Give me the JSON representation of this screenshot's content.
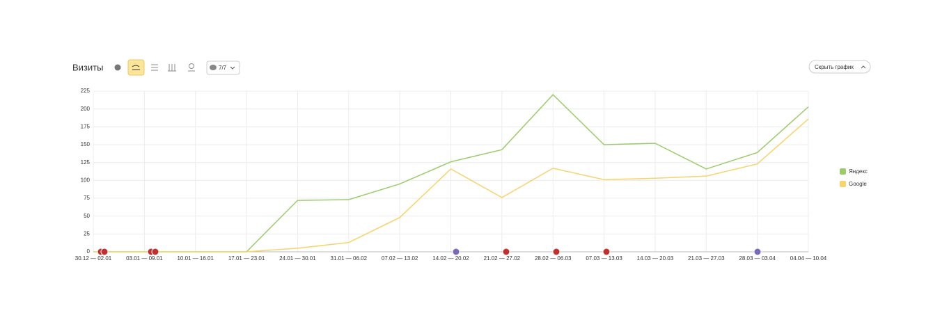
{
  "toolbar": {
    "title": "Визиты",
    "notes_filter": "7/7",
    "hide_button": "Скрыть график"
  },
  "chart_data": {
    "type": "line",
    "categories": [
      "30.12 — 02.01",
      "03.01 — 09.01",
      "10.01 — 16.01",
      "17.01 — 23.01",
      "24.01 — 30.01",
      "31.01 — 06.02",
      "07.02 — 13.02",
      "14.02 — 20.02",
      "21.02 — 27.02",
      "28.02 — 06.03",
      "07.03 — 13.03",
      "14.03 — 20.03",
      "21.03 — 27.03",
      "28.03 — 03.04",
      "04.04 — 10.04"
    ],
    "series": [
      {
        "name": "Яндекс",
        "color": "#9ccc6a",
        "values": [
          0,
          0,
          0,
          0,
          72,
          73,
          95,
          126,
          143,
          220,
          150,
          152,
          116,
          139,
          203
        ]
      },
      {
        "name": "Google",
        "color": "#f7d36b",
        "values": [
          0,
          0,
          0,
          0,
          5,
          13,
          48,
          116,
          76,
          117,
          101,
          103,
          106,
          123,
          186
        ]
      }
    ],
    "ylim": [
      0,
      225
    ],
    "yticks": [
      0,
      25,
      50,
      75,
      100,
      125,
      150,
      175,
      200,
      225
    ],
    "grid": true,
    "legend": "right"
  }
}
